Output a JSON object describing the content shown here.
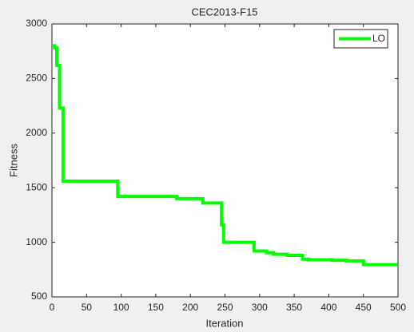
{
  "chart_data": {
    "type": "line",
    "title": "CEC2013-F15",
    "xlabel": "Iteration",
    "ylabel": "Fitness",
    "x": [
      0,
      4,
      4,
      7,
      7,
      11,
      11,
      16,
      16,
      95,
      95,
      180,
      180,
      218,
      218,
      245,
      245,
      248,
      248,
      292,
      292,
      310,
      310,
      320,
      320,
      340,
      340,
      362,
      362,
      370,
      370,
      405,
      405,
      425,
      425,
      450,
      450,
      500
    ],
    "series": [
      {
        "name": "LO",
        "color": "#00ff00",
        "values": [
          2800,
          2800,
          2780,
          2780,
          2620,
          2620,
          2230,
          2230,
          1560,
          1560,
          1420,
          1420,
          1400,
          1400,
          1360,
          1360,
          1160,
          1160,
          1000,
          1000,
          920,
          920,
          905,
          905,
          890,
          890,
          880,
          880,
          845,
          845,
          840,
          840,
          835,
          835,
          830,
          830,
          795,
          795
        ]
      }
    ],
    "xlim": [
      0,
      500
    ],
    "xticks": [
      0,
      50,
      100,
      150,
      200,
      250,
      300,
      350,
      400,
      450,
      500
    ],
    "ylim": [
      500,
      3000
    ],
    "yticks": [
      500,
      1000,
      1500,
      2000,
      2500,
      3000
    ],
    "legend": "top-right"
  }
}
